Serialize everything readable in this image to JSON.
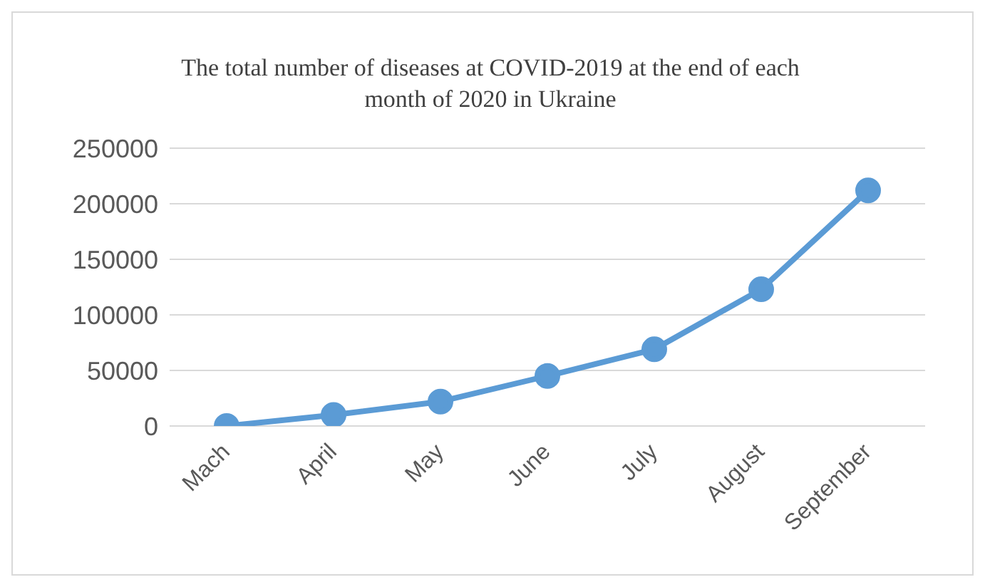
{
  "chart_data": {
    "type": "line",
    "title": "The total number of diseases at COVID-2019 at the end of each month of 2020 in Ukraine",
    "categories": [
      "Mach",
      "April",
      "May",
      "June",
      "July",
      "August",
      "September"
    ],
    "series": [
      {
        "color": "#5b9bd5",
        "values": [
          0,
          10000,
          22000,
          45000,
          69000,
          123000,
          212000
        ]
      }
    ],
    "ylim": [
      0,
      250000
    ],
    "yticks": [
      0,
      50000,
      100000,
      150000,
      200000,
      250000
    ],
    "grid": "y",
    "marker": "circle"
  }
}
